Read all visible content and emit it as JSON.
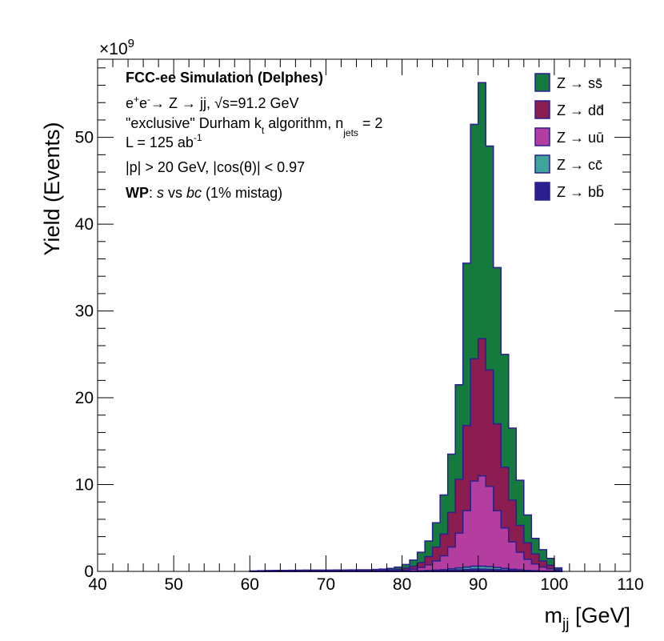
{
  "chart_data": {
    "type": "area",
    "title": "",
    "xlabel_main": "m",
    "xlabel_sub": "jj",
    "xlabel_unit": " [GeV]",
    "ylabel": "Yield (Events)",
    "y_exponent_base": "×10",
    "y_exponent_power": "9",
    "xlim": [
      40,
      110
    ],
    "ylim": [
      0,
      59
    ],
    "x_ticks": [
      40,
      50,
      60,
      70,
      80,
      90,
      100,
      110
    ],
    "y_ticks": [
      0,
      10,
      20,
      30,
      40,
      50
    ],
    "bin_width": 1,
    "x_bin_low_edges": [
      60,
      61,
      62,
      63,
      64,
      65,
      66,
      67,
      68,
      69,
      70,
      71,
      72,
      73,
      74,
      75,
      76,
      77,
      78,
      79,
      80,
      81,
      82,
      83,
      84,
      85,
      86,
      87,
      88,
      89,
      90,
      91,
      92,
      93,
      94,
      95,
      96,
      97,
      98,
      99,
      100
    ],
    "stacking": "cumulative; top layer drawn first",
    "series": [
      {
        "name": "Z → ss̄",
        "color": "#157a3d",
        "stacked_totals": [
          0.05,
          0.08,
          0.1,
          0.12,
          0.12,
          0.13,
          0.14,
          0.15,
          0.15,
          0.15,
          0.15,
          0.16,
          0.16,
          0.17,
          0.18,
          0.19,
          0.22,
          0.27,
          0.35,
          0.5,
          0.8,
          1.3,
          2.2,
          3.5,
          5.6,
          8.8,
          13.5,
          21.5,
          35.5,
          51.5,
          56.3,
          49,
          35,
          25,
          16.5,
          10.5,
          6.5,
          3.8,
          2.5,
          1.5,
          0.4
        ]
      },
      {
        "name": "Z → dd̄",
        "color": "#8b1d51",
        "stacked_totals": [
          0.03,
          0.04,
          0.05,
          0.06,
          0.06,
          0.06,
          0.07,
          0.07,
          0.07,
          0.07,
          0.07,
          0.08,
          0.08,
          0.08,
          0.09,
          0.1,
          0.11,
          0.13,
          0.17,
          0.24,
          0.38,
          0.6,
          1.0,
          1.7,
          2.8,
          4.3,
          6.8,
          10.6,
          16.8,
          24.5,
          26.8,
          23.2,
          17,
          12,
          8.2,
          5.3,
          3.3,
          2.0,
          1.2,
          0.7,
          0.2
        ]
      },
      {
        "name": "Z → uū",
        "color": "#b43da0",
        "stacked_totals": [
          0.01,
          0.02,
          0.02,
          0.02,
          0.02,
          0.02,
          0.03,
          0.03,
          0.03,
          0.03,
          0.03,
          0.03,
          0.03,
          0.03,
          0.04,
          0.04,
          0.05,
          0.06,
          0.08,
          0.1,
          0.15,
          0.25,
          0.45,
          0.75,
          1.2,
          1.8,
          2.8,
          4.4,
          7.0,
          10.4,
          11.0,
          9.8,
          7.0,
          5.0,
          3.4,
          2.2,
          1.4,
          0.85,
          0.5,
          0.3,
          0.08
        ]
      },
      {
        "name": "Z → cc̄",
        "color": "#3fa49a",
        "stacked_totals": [
          0.004,
          0.005,
          0.006,
          0.007,
          0.007,
          0.007,
          0.008,
          0.008,
          0.008,
          0.008,
          0.008,
          0.009,
          0.009,
          0.009,
          0.01,
          0.011,
          0.012,
          0.014,
          0.018,
          0.024,
          0.035,
          0.05,
          0.07,
          0.1,
          0.15,
          0.2,
          0.3,
          0.4,
          0.5,
          0.6,
          0.6,
          0.55,
          0.45,
          0.35,
          0.25,
          0.18,
          0.12,
          0.08,
          0.05,
          0.03,
          0.01
        ]
      },
      {
        "name": "Z → bb̄",
        "color": "#2b1e8f",
        "stacked_totals": [
          0.002,
          0.002,
          0.003,
          0.003,
          0.003,
          0.003,
          0.004,
          0.004,
          0.004,
          0.004,
          0.004,
          0.004,
          0.004,
          0.004,
          0.005,
          0.005,
          0.006,
          0.007,
          0.009,
          0.012,
          0.017,
          0.025,
          0.035,
          0.05,
          0.07,
          0.1,
          0.14,
          0.18,
          0.22,
          0.26,
          0.26,
          0.24,
          0.2,
          0.16,
          0.12,
          0.09,
          0.06,
          0.04,
          0.025,
          0.015,
          0.005
        ]
      }
    ],
    "annotations": {
      "line1": "FCC-ee Simulation (Delphes)",
      "line2": {
        "e1": "e",
        "e1_sup": "+",
        "e2": "e",
        "e2_sup": "-",
        "process": "→ Z → jj, ",
        "sqrt": "√s",
        "energy": "=91.2 GeV"
      },
      "line3": {
        "pre": "\"exclusive\" Durham k",
        "kt_sub": "t",
        "mid": " algorithm, n",
        "n_sub": "jets",
        "post": " = 2"
      },
      "line4": {
        "pre": "L = 125 ab",
        "sup": "-1"
      },
      "line5": "|p| > 20 GeV, |cos(θ)| < 0.97",
      "line6": {
        "wp": "WP",
        "colon": ": ",
        "s": "s",
        "vs": " vs ",
        "bc": "bc",
        "post": " (1% mistag)"
      }
    },
    "legend_position": "top-right"
  }
}
